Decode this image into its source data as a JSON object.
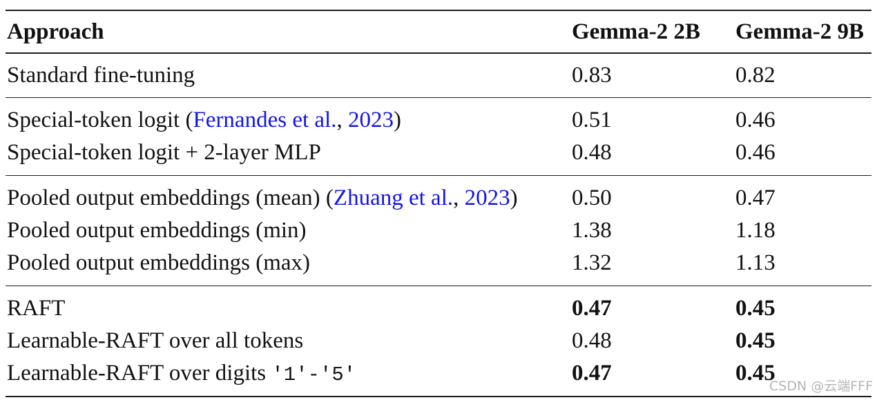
{
  "table": {
    "headers": {
      "approach": "Approach",
      "gemma_2b": "Gemma-2 2B",
      "gemma_9b": "Gemma-2 9B"
    },
    "groups": [
      {
        "rows": [
          {
            "prefix": "Standard fine-tuning",
            "cite_author": "",
            "cite_year": "",
            "suffix": "",
            "code": "",
            "v2b": "0.83",
            "v9b": "0.82",
            "bold2b": false,
            "bold9b": false
          }
        ]
      },
      {
        "rows": [
          {
            "prefix": "Special-token logit (",
            "cite_author": "Fernandes et al.",
            "cite_sep": ", ",
            "cite_year": "2023",
            "suffix": ")",
            "code": "",
            "v2b": "0.51",
            "v9b": "0.46",
            "bold2b": false,
            "bold9b": false
          },
          {
            "prefix": "Special-token logit + 2-layer MLP",
            "cite_author": "",
            "cite_year": "",
            "suffix": "",
            "code": "",
            "v2b": "0.48",
            "v9b": "0.46",
            "bold2b": false,
            "bold9b": false
          }
        ]
      },
      {
        "rows": [
          {
            "prefix": "Pooled output embeddings (mean) (",
            "cite_author": "Zhuang et al.",
            "cite_sep": ", ",
            "cite_year": "2023",
            "suffix": ")",
            "code": "",
            "v2b": "0.50",
            "v9b": "0.47",
            "bold2b": false,
            "bold9b": false
          },
          {
            "prefix": "Pooled output embeddings (min)",
            "cite_author": "",
            "cite_year": "",
            "suffix": "",
            "code": "",
            "v2b": "1.38",
            "v9b": "1.18",
            "bold2b": false,
            "bold9b": false
          },
          {
            "prefix": "Pooled output embeddings (max)",
            "cite_author": "",
            "cite_year": "",
            "suffix": "",
            "code": "",
            "v2b": "1.32",
            "v9b": "1.13",
            "bold2b": false,
            "bold9b": false
          }
        ]
      },
      {
        "rows": [
          {
            "prefix": "RAFT",
            "cite_author": "",
            "cite_year": "",
            "suffix": "",
            "code": "",
            "v2b": "0.47",
            "v9b": "0.45",
            "bold2b": true,
            "bold9b": true
          },
          {
            "prefix": "Learnable-RAFT over all tokens",
            "cite_author": "",
            "cite_year": "",
            "suffix": "",
            "code": "",
            "v2b": "0.48",
            "v9b": "0.45",
            "bold2b": false,
            "bold9b": true
          },
          {
            "prefix": "Learnable-RAFT over digits ",
            "cite_author": "",
            "cite_year": "",
            "suffix": "",
            "code": "'1'-'5'",
            "v2b": "0.47",
            "v9b": "0.45",
            "bold2b": true,
            "bold9b": true
          }
        ]
      }
    ]
  },
  "watermark": "CSDN @云端FFF",
  "colors": {
    "citation": "#1414e6",
    "rule": "#1a1a1a",
    "watermark": "#b5b5b5"
  }
}
